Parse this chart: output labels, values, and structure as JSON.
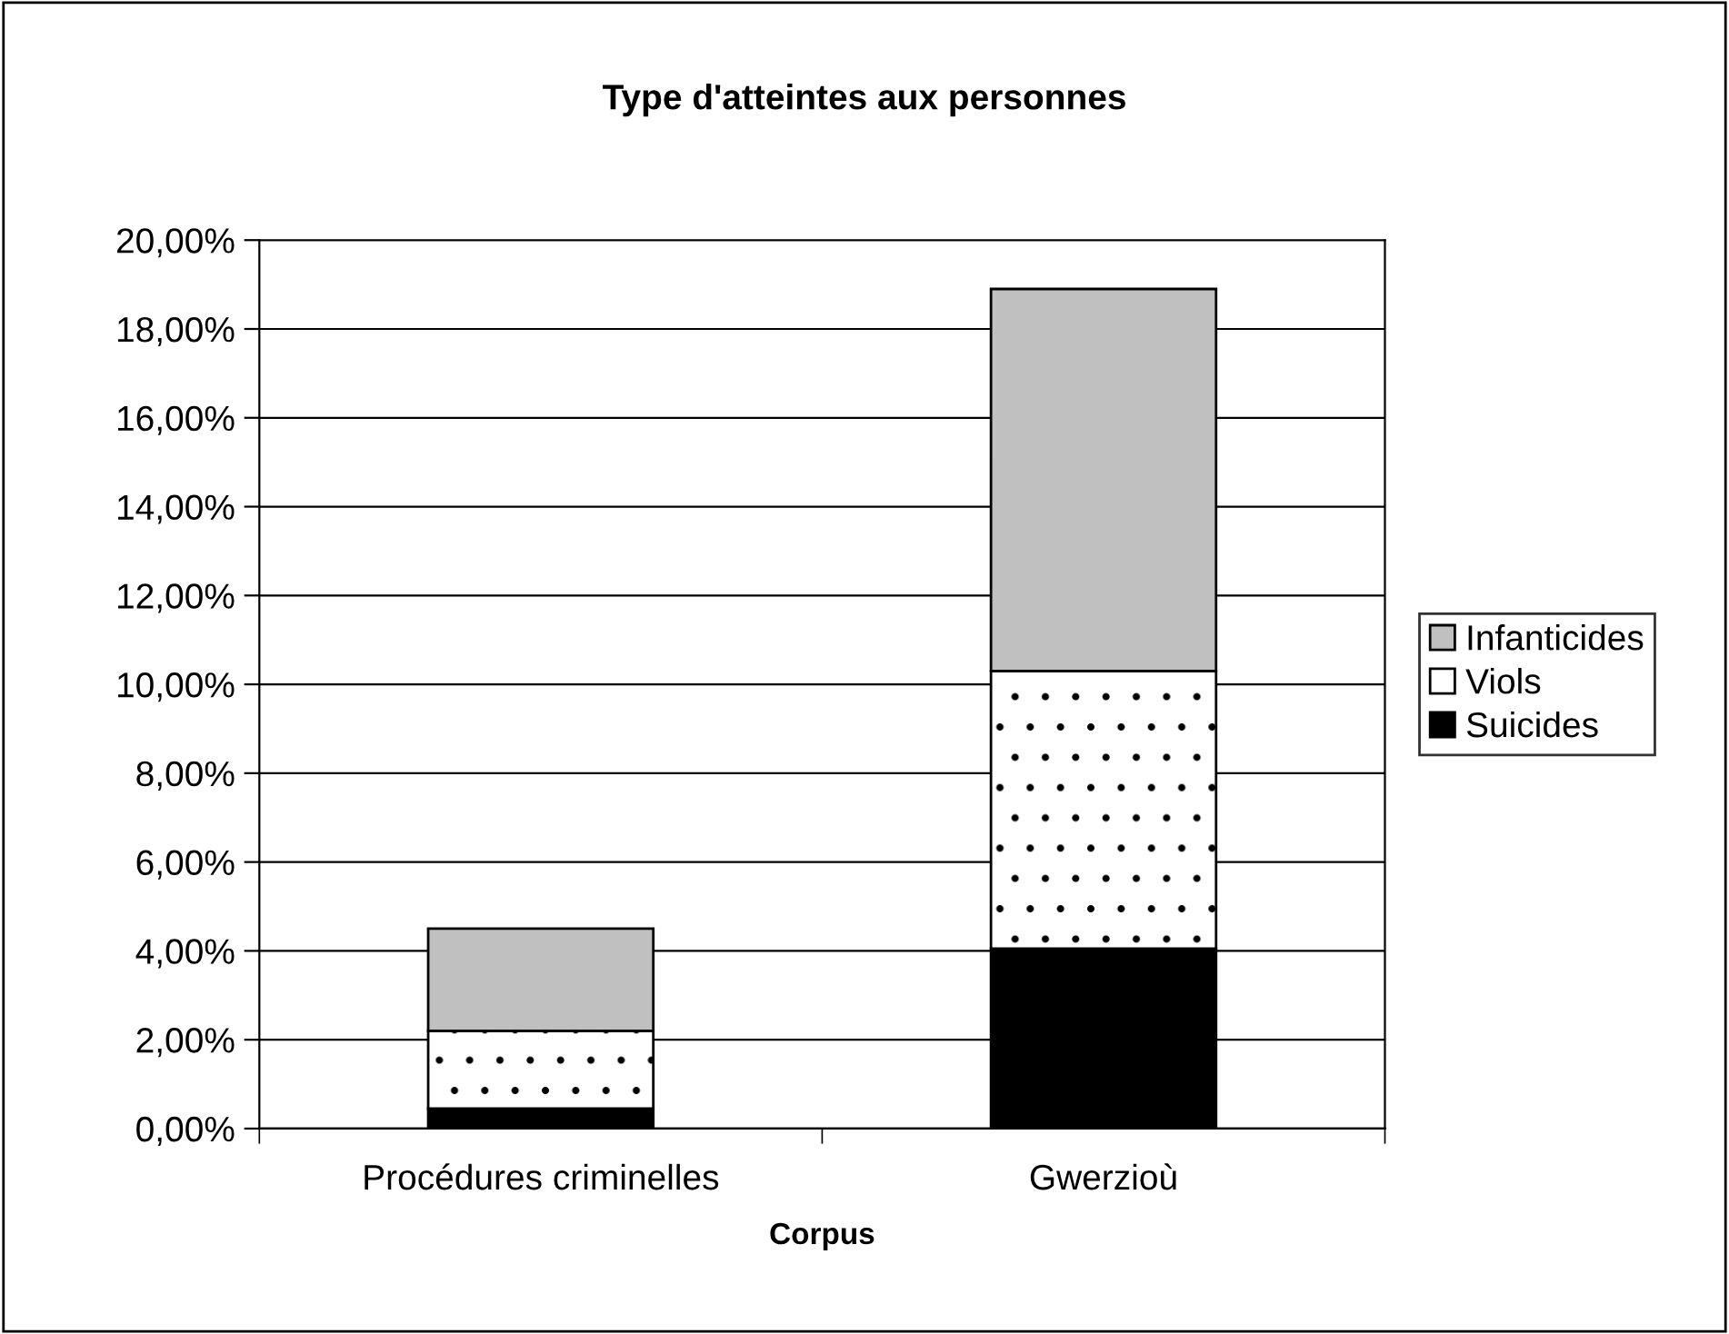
{
  "chart_data": {
    "type": "bar",
    "title": "Type d'atteintes aux personnes",
    "xlabel": "Corpus",
    "categories": [
      "Procédures criminelles",
      "Gwerzioù"
    ],
    "stacked": true,
    "series": [
      {
        "name": "Suicides",
        "color": "#000000",
        "values": [
          0.45,
          4.05
        ]
      },
      {
        "name": "Viols",
        "color": "#ffffff",
        "values": [
          1.75,
          6.25
        ]
      },
      {
        "name": "Infanticides",
        "color": "#c0c0c0",
        "values": [
          2.3,
          8.6
        ]
      }
    ],
    "ylim": [
      0,
      20
    ],
    "yticks": [
      {
        "value": 0,
        "label": "0,00%"
      },
      {
        "value": 2,
        "label": "2,00%"
      },
      {
        "value": 4,
        "label": "4,00%"
      },
      {
        "value": 6,
        "label": "6,00%"
      },
      {
        "value": 8,
        "label": "8,00%"
      },
      {
        "value": 10,
        "label": "10,00%"
      },
      {
        "value": 12,
        "label": "12,00%"
      },
      {
        "value": 14,
        "label": "14,00%"
      },
      {
        "value": 16,
        "label": "16,00%"
      },
      {
        "value": 18,
        "label": "18,00%"
      },
      {
        "value": 20,
        "label": "20,00%"
      }
    ],
    "grid": "y",
    "legend": "right"
  }
}
